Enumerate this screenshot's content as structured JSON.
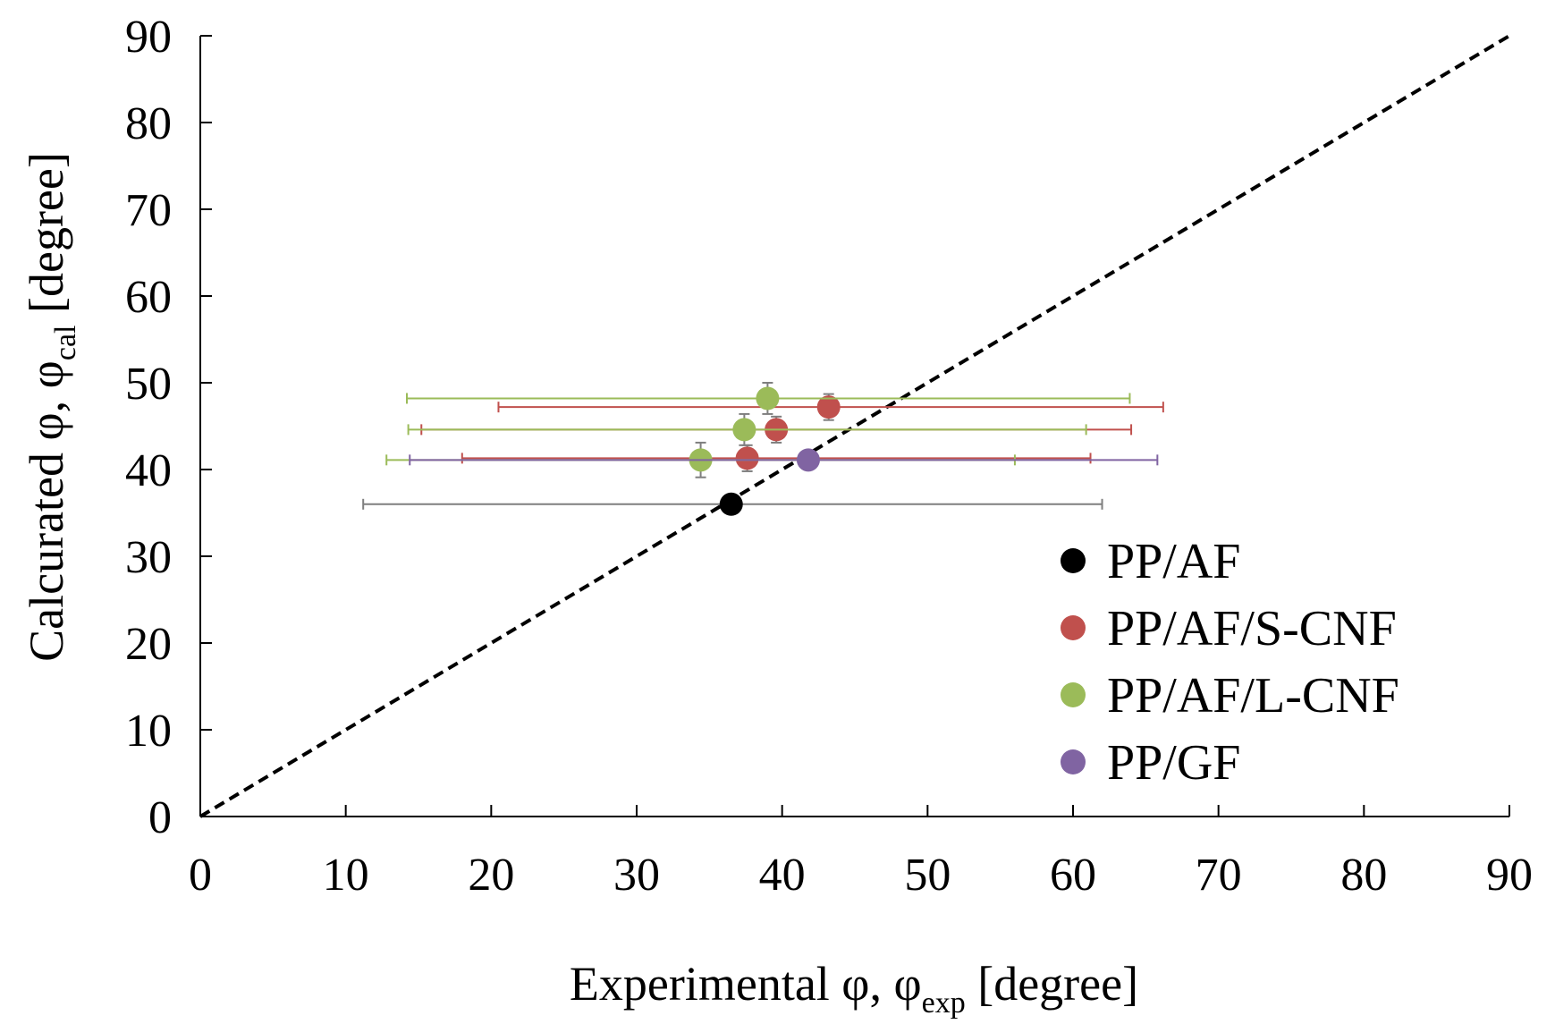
{
  "chart_data": {
    "type": "scatter",
    "title": "",
    "xlabel": {
      "main": "Experimental φ, φ",
      "sub": "exp",
      "suffix": " [degree]"
    },
    "ylabel": {
      "main": "Calcurated φ, φ",
      "sub": "cal",
      "suffix": " [degree]"
    },
    "xlim": [
      0,
      90
    ],
    "ylim": [
      0,
      90
    ],
    "xticks": [
      0,
      10,
      20,
      30,
      40,
      50,
      60,
      70,
      80,
      90
    ],
    "yticks": [
      0,
      10,
      20,
      30,
      40,
      50,
      60,
      70,
      80,
      90
    ],
    "xtick_labels": [
      "0",
      "10",
      "20",
      "30",
      "40",
      "50",
      "60",
      "70",
      "80",
      "90"
    ],
    "ytick_labels": [
      "0",
      "10",
      "20",
      "30",
      "40",
      "50",
      "60",
      "70",
      "80",
      "90"
    ],
    "grid": false,
    "reference_line": {
      "style": "dashed",
      "color": "#000000",
      "from": [
        0,
        0
      ],
      "to": [
        90,
        90
      ]
    },
    "legend_position": "bottom-right",
    "series": [
      {
        "name": "PP/AF",
        "color": "#000000",
        "errcolor": "#7f7f7f",
        "points": [
          {
            "x": 36.5,
            "y": 36.0,
            "xerr": [
              25.3,
              25.5
            ],
            "yerr": 0
          }
        ]
      },
      {
        "name": "PP/AF/S-CNF",
        "color": "#c0504d",
        "errcolor": "#c0504d",
        "points": [
          {
            "x": 43.2,
            "y": 47.2,
            "xerr": [
              22.7,
              23.0
            ],
            "yerr": 1.5
          },
          {
            "x": 39.6,
            "y": 44.6,
            "xerr": [
              24.4,
              24.4
            ],
            "yerr": 1.5
          },
          {
            "x": 37.6,
            "y": 41.3,
            "xerr": [
              19.6,
              23.6
            ],
            "yerr": 1.5
          }
        ]
      },
      {
        "name": "PP/AF/L-CNF",
        "color": "#9bbb59",
        "errcolor": "#9bbb59",
        "points": [
          {
            "x": 39.0,
            "y": 48.2,
            "xerr": [
              24.8,
              24.9
            ],
            "yerr": 1.8
          },
          {
            "x": 37.4,
            "y": 44.6,
            "xerr": [
              23.1,
              23.5
            ],
            "yerr": 1.8
          },
          {
            "x": 34.4,
            "y": 41.1,
            "xerr": [
              21.6,
              21.6
            ],
            "yerr": 2.0
          }
        ]
      },
      {
        "name": "PP/GF",
        "color": "#8064a2",
        "errcolor": "#8064a2",
        "points": [
          {
            "x": 41.8,
            "y": 41.1,
            "xerr": [
              27.4,
              24.0
            ],
            "yerr": 0
          }
        ]
      }
    ]
  }
}
